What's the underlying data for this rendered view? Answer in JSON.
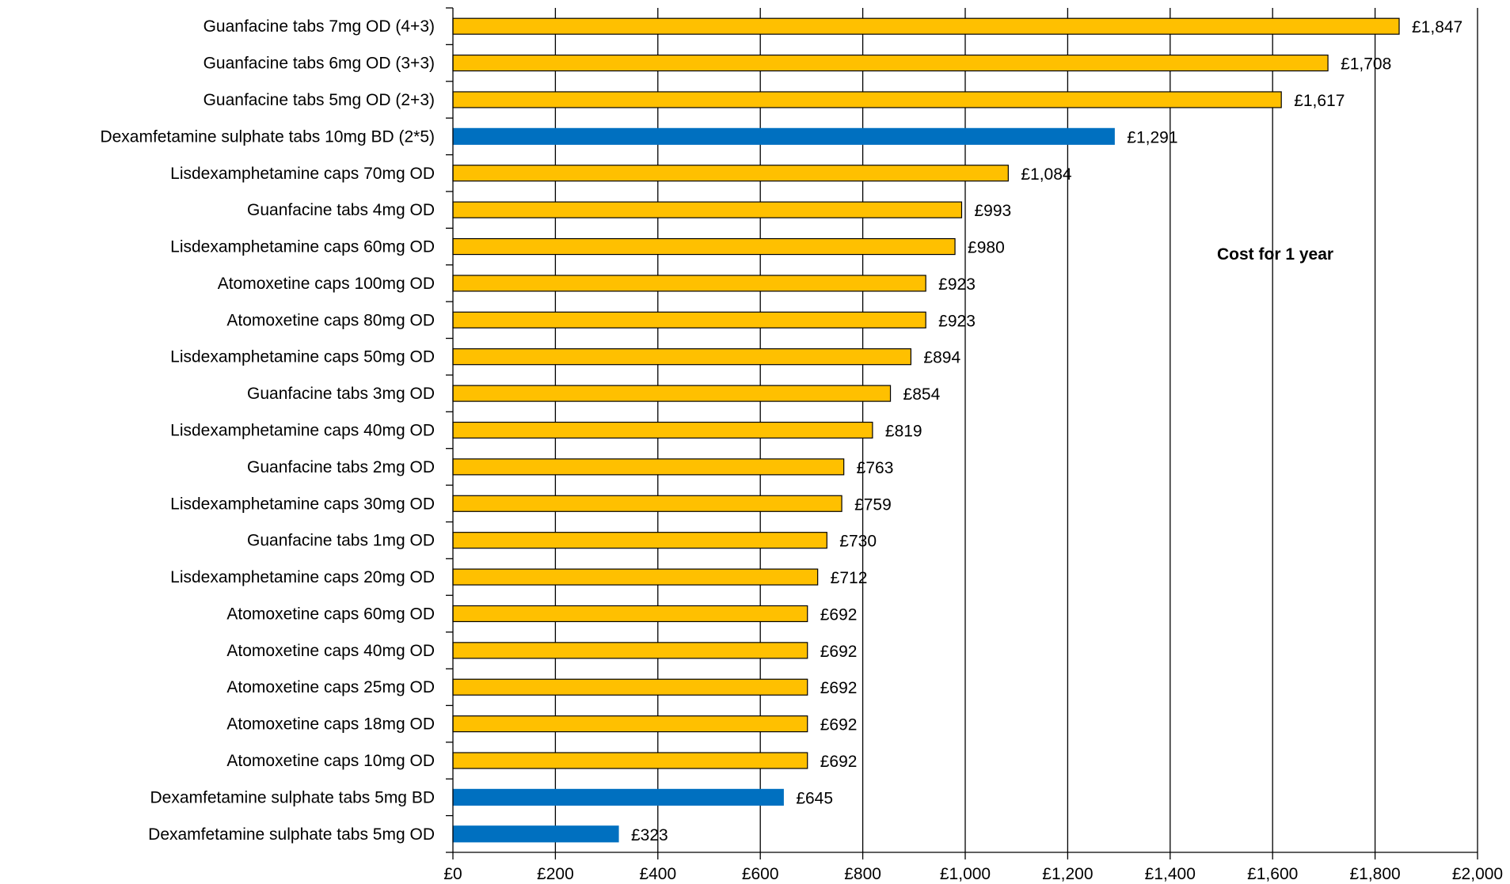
{
  "chart_data": {
    "type": "bar",
    "orientation": "horizontal",
    "annotation": "Cost for 1 year",
    "xlim": [
      0,
      2000
    ],
    "x_ticks": [
      0,
      200,
      400,
      600,
      800,
      1000,
      1200,
      1400,
      1600,
      1800,
      2000
    ],
    "x_tick_labels": [
      "£0",
      "£200",
      "£400",
      "£600",
      "£800",
      "£1,000",
      "£1,200",
      "£1,400",
      "£1,600",
      "£1,800",
      "£2,000"
    ],
    "grid": true,
    "colors": {
      "default": "#FFC000",
      "highlight": "#0070C0"
    },
    "categories": [
      "Guanfacine tabs 7mg OD (4+3)",
      "Guanfacine tabs 6mg OD (3+3)",
      "Guanfacine tabs 5mg OD (2+3)",
      "Dexamfetamine sulphate tabs 10mg BD (2*5)",
      "Lisdexamphetamine caps 70mg OD",
      "Guanfacine tabs 4mg OD",
      "Lisdexamphetamine caps 60mg OD",
      "Atomoxetine caps 100mg OD",
      "Atomoxetine caps 80mg OD",
      "Lisdexamphetamine caps 50mg OD",
      "Guanfacine tabs 3mg OD",
      "Lisdexamphetamine caps 40mg OD",
      "Guanfacine tabs 2mg OD",
      "Lisdexamphetamine caps 30mg OD",
      "Guanfacine tabs 1mg OD",
      "Lisdexamphetamine caps 20mg OD",
      "Atomoxetine caps 60mg OD",
      "Atomoxetine caps 40mg OD",
      "Atomoxetine caps 25mg OD",
      "Atomoxetine caps 18mg OD",
      "Atomoxetine caps 10mg OD",
      "Dexamfetamine sulphate tabs 5mg BD",
      "Dexamfetamine sulphate tabs 5mg OD"
    ],
    "values": [
      1847,
      1708,
      1617,
      1291,
      1084,
      993,
      980,
      923,
      923,
      894,
      854,
      819,
      763,
      759,
      730,
      712,
      692,
      692,
      692,
      692,
      692,
      645,
      323
    ],
    "value_labels": [
      "£1,847",
      "£1,708",
      "£1,617",
      "£1,291",
      "£1,084",
      "£993",
      "£980",
      "£923",
      "£923",
      "£894",
      "£854",
      "£819",
      "£763",
      "£759",
      "£730",
      "£712",
      "£692",
      "£692",
      "£692",
      "£692",
      "£692",
      "£645",
      "£323"
    ],
    "highlight": [
      false,
      false,
      false,
      true,
      false,
      false,
      false,
      false,
      false,
      false,
      false,
      false,
      false,
      false,
      false,
      false,
      false,
      false,
      false,
      false,
      false,
      true,
      true
    ]
  }
}
